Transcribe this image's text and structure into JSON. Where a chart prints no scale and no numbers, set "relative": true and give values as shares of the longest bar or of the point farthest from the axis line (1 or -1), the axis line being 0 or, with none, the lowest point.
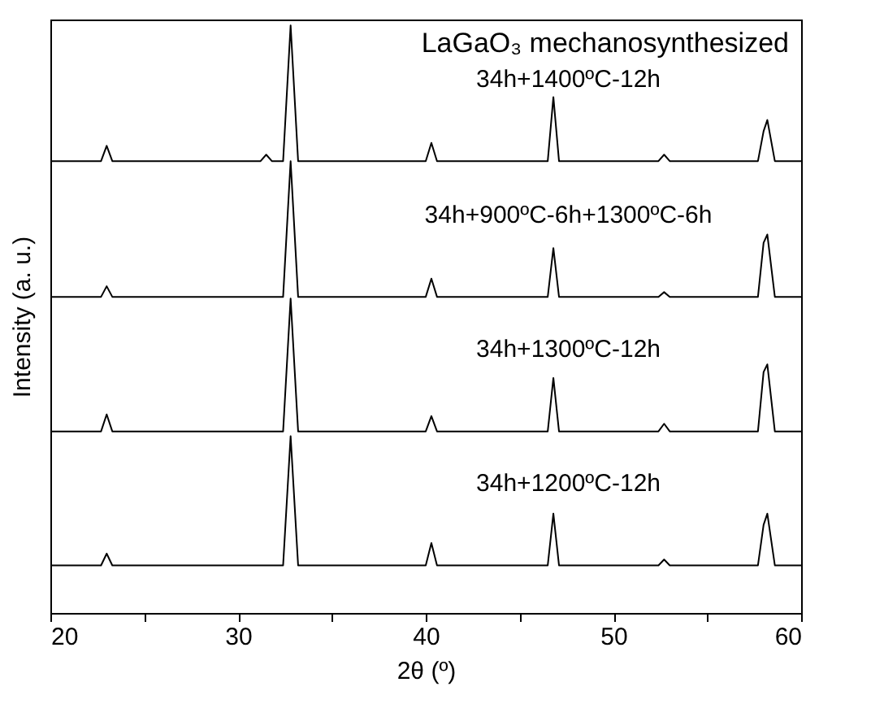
{
  "chart_data": {
    "type": "line",
    "title": "LaGaO₃ mechanosynthesized",
    "xlabel": "2θ (º)",
    "ylabel": "Intensity (a. u.)",
    "relative": true,
    "legend": false,
    "grid": false,
    "tick_labels": "x",
    "x": [
      20,
      22.7,
      23.0,
      23.3,
      31.2,
      31.5,
      31.8,
      32.4,
      32.8,
      33.2,
      40.0,
      40.3,
      40.6,
      46.5,
      46.8,
      47.1,
      52.4,
      52.7,
      53.0,
      57.7,
      58.0,
      58.2,
      58.6,
      60
    ],
    "xlim": [
      20,
      60
    ],
    "xticks": [
      20,
      {
        "value": 25,
        "label": null
      },
      30,
      {
        "value": 35,
        "label": null
      },
      40,
      {
        "value": 45,
        "label": null
      },
      50,
      {
        "value": 55,
        "label": null
      },
      60
    ],
    "series": [
      {
        "name": "34h+1400ºC-12h",
        "color": "#000000",
        "values": [
          0.769,
          0.769,
          0.795,
          0.769,
          0.769,
          0.78,
          0.769,
          0.769,
          1.0,
          0.769,
          0.769,
          0.8,
          0.769,
          0.769,
          0.878,
          0.769,
          0.769,
          0.78,
          0.769,
          0.769,
          0.82,
          0.839,
          0.769,
          0.769
        ]
      },
      {
        "name": "34h+900ºC-6h+1300ºC-6h",
        "color": "#000000",
        "values": [
          0.538,
          0.538,
          0.556,
          0.538,
          0.538,
          0.538,
          0.538,
          0.538,
          0.769,
          0.538,
          0.538,
          0.569,
          0.538,
          0.538,
          0.621,
          0.538,
          0.538,
          0.546,
          0.538,
          0.538,
          0.63,
          0.644,
          0.538,
          0.538
        ]
      },
      {
        "name": "34h+1300ºC-12h",
        "color": "#000000",
        "values": [
          0.309,
          0.309,
          0.338,
          0.309,
          0.309,
          0.309,
          0.309,
          0.309,
          0.535,
          0.309,
          0.309,
          0.335,
          0.309,
          0.309,
          0.4,
          0.309,
          0.309,
          0.322,
          0.309,
          0.309,
          0.41,
          0.423,
          0.309,
          0.309
        ]
      },
      {
        "name": "34h+1200ºC-12h",
        "color": "#000000",
        "values": [
          0.081,
          0.081,
          0.101,
          0.081,
          0.081,
          0.081,
          0.081,
          0.081,
          0.301,
          0.081,
          0.081,
          0.119,
          0.081,
          0.081,
          0.169,
          0.081,
          0.081,
          0.091,
          0.081,
          0.081,
          0.15,
          0.169,
          0.081,
          0.081
        ]
      }
    ]
  }
}
